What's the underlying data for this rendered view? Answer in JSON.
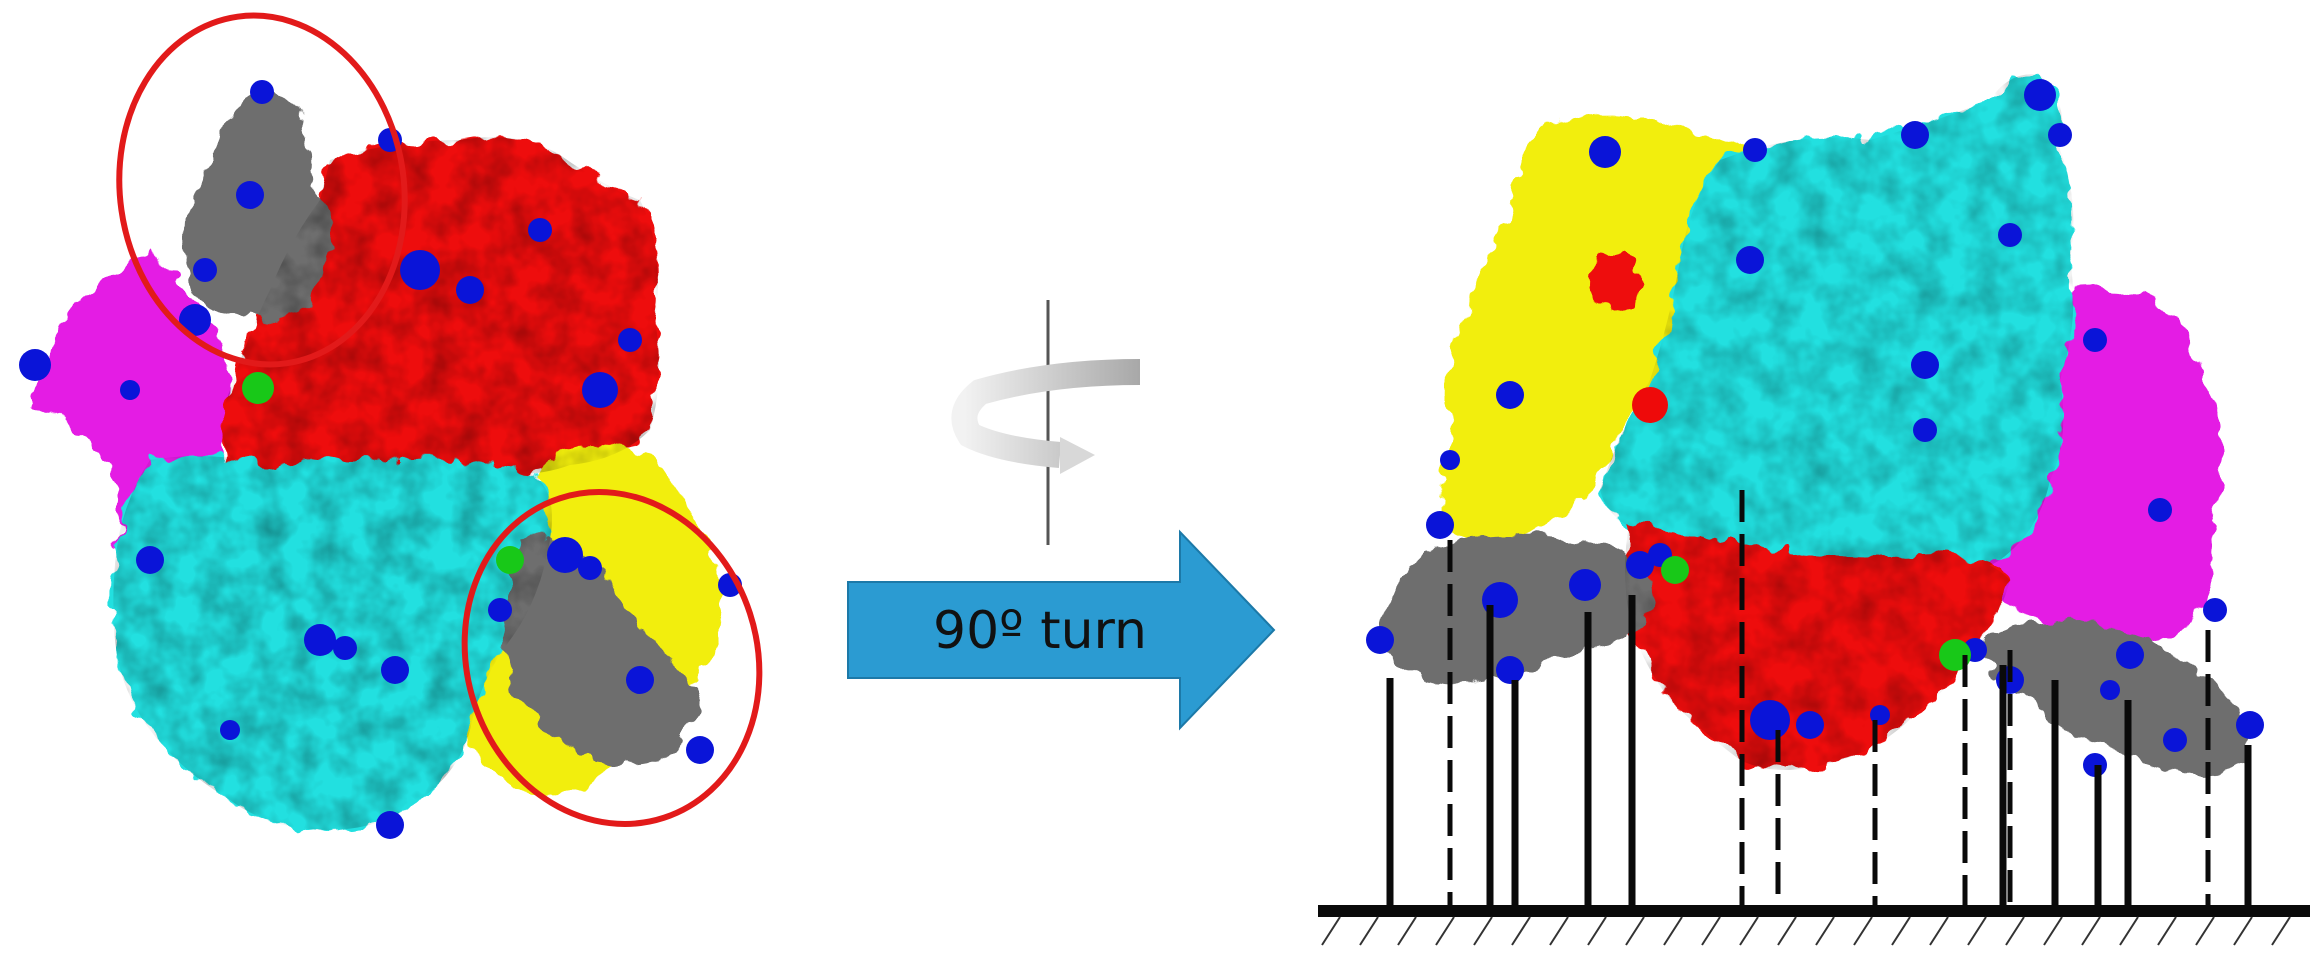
{
  "figure": {
    "arrow_label": "90º turn",
    "colors": {
      "red": "#ee0a0a",
      "cyan": "#22e0e0",
      "yellow": "#f2ee10",
      "magenta": "#e41ee4",
      "gray": "#6e6e6e",
      "blue": "#0a14d8",
      "green": "#18c818",
      "circle": "#e21a1a",
      "arrow": "#2b9bd2",
      "arrow_edge": "#1c79a8",
      "rotation_icon": "#b4b4b4",
      "support": "#0a0a0a"
    },
    "icons": {
      "rotation": "rotation-axis-icon",
      "arrow": "right-arrow-icon"
    }
  }
}
